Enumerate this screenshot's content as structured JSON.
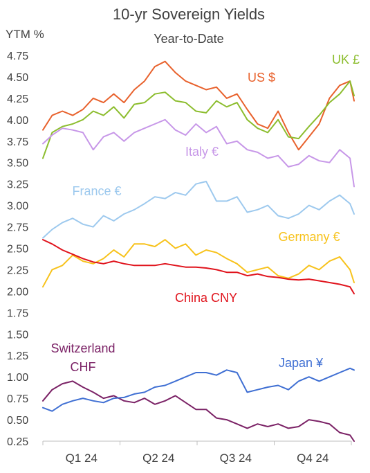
{
  "chart_data": {
    "type": "line",
    "title": "10-yr Sovereign Yields",
    "subtitle": "Year-to-Date",
    "ylabel": "YTM %",
    "ylim": [
      0.25,
      4.75
    ],
    "y_ticks": [
      "4.75",
      "4.50",
      "4.25",
      "4.00",
      "3.75",
      "3.50",
      "3.25",
      "3.00",
      "2.75",
      "2.50",
      "2.25",
      "2.00",
      "1.75",
      "1.50",
      "1.25",
      "1.00",
      "0.75",
      "0.50",
      "0.25"
    ],
    "x_ticks": [
      "Q1 24",
      "Q2 24",
      "Q3 24",
      "Q4 24"
    ],
    "x_range": [
      1,
      304
    ],
    "grid": false,
    "series": [
      {
        "name": "US $",
        "color": "#E8612C",
        "x": [
          1,
          10,
          20,
          30,
          40,
          50,
          60,
          70,
          80,
          90,
          100,
          110,
          120,
          130,
          140,
          150,
          160,
          170,
          180,
          190,
          200,
          210,
          220,
          230,
          240,
          250,
          260,
          270,
          280,
          290,
          300,
          304
        ],
        "y": [
          3.88,
          4.05,
          4.1,
          4.05,
          4.12,
          4.25,
          4.2,
          4.3,
          4.2,
          4.35,
          4.45,
          4.62,
          4.68,
          4.55,
          4.45,
          4.4,
          4.35,
          4.38,
          4.25,
          4.3,
          4.12,
          3.95,
          3.9,
          4.1,
          3.85,
          3.65,
          3.8,
          3.95,
          4.25,
          4.4,
          4.45,
          4.22
        ]
      },
      {
        "name": "UK £",
        "color": "#8CBD2E",
        "x": [
          1,
          10,
          20,
          30,
          40,
          50,
          60,
          70,
          80,
          90,
          100,
          110,
          120,
          130,
          140,
          150,
          160,
          170,
          180,
          190,
          200,
          210,
          220,
          230,
          240,
          250,
          260,
          270,
          280,
          290,
          300,
          304
        ],
        "y": [
          3.55,
          3.85,
          3.92,
          3.95,
          4.0,
          4.1,
          4.05,
          4.15,
          4.02,
          4.18,
          4.2,
          4.3,
          4.32,
          4.22,
          4.2,
          4.1,
          4.08,
          4.22,
          4.15,
          4.2,
          4.0,
          3.9,
          3.85,
          4.0,
          3.8,
          3.78,
          3.92,
          4.05,
          4.2,
          4.3,
          4.45,
          4.28
        ]
      },
      {
        "name": "Italy €",
        "color": "#C797E8",
        "x": [
          1,
          10,
          20,
          30,
          40,
          50,
          60,
          70,
          80,
          90,
          100,
          110,
          120,
          130,
          140,
          150,
          160,
          170,
          180,
          190,
          200,
          210,
          220,
          230,
          240,
          250,
          260,
          270,
          280,
          290,
          300,
          304
        ],
        "y": [
          3.72,
          3.82,
          3.9,
          3.88,
          3.85,
          3.65,
          3.8,
          3.85,
          3.75,
          3.85,
          3.9,
          3.95,
          4.0,
          3.88,
          3.82,
          3.95,
          3.85,
          3.92,
          3.72,
          3.75,
          3.65,
          3.62,
          3.55,
          3.58,
          3.45,
          3.48,
          3.58,
          3.52,
          3.5,
          3.65,
          3.55,
          3.22
        ]
      },
      {
        "name": "France €",
        "color": "#9DC9EE",
        "x": [
          1,
          10,
          20,
          30,
          40,
          50,
          60,
          70,
          80,
          90,
          100,
          110,
          120,
          130,
          140,
          150,
          160,
          170,
          180,
          190,
          200,
          210,
          220,
          230,
          240,
          250,
          260,
          270,
          280,
          290,
          300,
          304
        ],
        "y": [
          2.62,
          2.72,
          2.8,
          2.85,
          2.78,
          2.75,
          2.88,
          2.82,
          2.9,
          2.95,
          3.02,
          3.1,
          3.08,
          3.15,
          3.12,
          3.25,
          3.28,
          3.05,
          3.05,
          3.1,
          2.92,
          2.95,
          3.0,
          2.88,
          2.85,
          2.9,
          3.0,
          2.95,
          3.05,
          3.12,
          3.02,
          2.9
        ]
      },
      {
        "name": "Germany €",
        "color": "#F7C21B",
        "x": [
          1,
          10,
          20,
          30,
          40,
          50,
          60,
          70,
          80,
          90,
          100,
          110,
          120,
          130,
          140,
          150,
          160,
          170,
          180,
          190,
          200,
          210,
          220,
          230,
          240,
          250,
          260,
          270,
          280,
          290,
          300,
          304
        ],
        "y": [
          2.05,
          2.25,
          2.3,
          2.42,
          2.35,
          2.32,
          2.38,
          2.48,
          2.4,
          2.55,
          2.55,
          2.52,
          2.6,
          2.5,
          2.55,
          2.42,
          2.48,
          2.45,
          2.38,
          2.32,
          2.22,
          2.25,
          2.28,
          2.18,
          2.15,
          2.2,
          2.3,
          2.25,
          2.35,
          2.4,
          2.25,
          2.1
        ]
      },
      {
        "name": "China CNY",
        "color": "#E0131C",
        "x": [
          1,
          10,
          20,
          30,
          40,
          50,
          60,
          70,
          80,
          90,
          100,
          110,
          120,
          130,
          140,
          150,
          160,
          170,
          180,
          190,
          200,
          210,
          220,
          230,
          240,
          250,
          260,
          270,
          280,
          290,
          300,
          304
        ],
        "y": [
          2.6,
          2.55,
          2.48,
          2.43,
          2.38,
          2.34,
          2.32,
          2.35,
          2.32,
          2.3,
          2.3,
          2.3,
          2.32,
          2.3,
          2.28,
          2.28,
          2.27,
          2.25,
          2.22,
          2.22,
          2.18,
          2.2,
          2.17,
          2.16,
          2.14,
          2.13,
          2.14,
          2.12,
          2.1,
          2.08,
          2.05,
          1.97
        ]
      },
      {
        "name": "Switzerland CHF",
        "color": "#7B2266",
        "x": [
          1,
          10,
          20,
          30,
          40,
          50,
          60,
          70,
          80,
          90,
          100,
          110,
          120,
          130,
          140,
          150,
          160,
          170,
          180,
          190,
          200,
          210,
          220,
          230,
          240,
          250,
          260,
          270,
          280,
          290,
          300,
          304
        ],
        "y": [
          0.72,
          0.85,
          0.92,
          0.95,
          0.88,
          0.82,
          0.75,
          0.78,
          0.72,
          0.7,
          0.75,
          0.68,
          0.72,
          0.78,
          0.7,
          0.62,
          0.62,
          0.52,
          0.5,
          0.45,
          0.4,
          0.45,
          0.42,
          0.45,
          0.4,
          0.42,
          0.5,
          0.48,
          0.45,
          0.35,
          0.32,
          0.25
        ]
      },
      {
        "name": "Japan ¥",
        "color": "#3F6FD3",
        "x": [
          1,
          10,
          20,
          30,
          40,
          50,
          60,
          70,
          80,
          90,
          100,
          110,
          120,
          130,
          140,
          150,
          160,
          170,
          180,
          190,
          200,
          210,
          220,
          230,
          240,
          250,
          260,
          270,
          280,
          290,
          300,
          304
        ],
        "y": [
          0.64,
          0.6,
          0.68,
          0.72,
          0.75,
          0.72,
          0.7,
          0.75,
          0.76,
          0.8,
          0.82,
          0.88,
          0.9,
          0.95,
          1.0,
          1.05,
          1.05,
          1.02,
          1.08,
          1.05,
          0.82,
          0.85,
          0.88,
          0.9,
          0.85,
          0.95,
          1.0,
          0.95,
          1.0,
          1.05,
          1.1,
          1.08
        ]
      }
    ],
    "labels": [
      {
        "series": "US $",
        "text": "US $"
      },
      {
        "series": "UK £",
        "text": "UK £"
      },
      {
        "series": "Italy €",
        "text": "Italy €"
      },
      {
        "series": "France €",
        "text": "France €"
      },
      {
        "series": "Germany €",
        "text": "Germany €"
      },
      {
        "series": "China CNY",
        "text": "China CNY"
      },
      {
        "series": "Switzerland CHF",
        "text": "Switzerland"
      },
      {
        "series": "Switzerland CHF",
        "text": "CHF"
      },
      {
        "series": "Japan ¥",
        "text": "Japan ¥"
      }
    ]
  }
}
